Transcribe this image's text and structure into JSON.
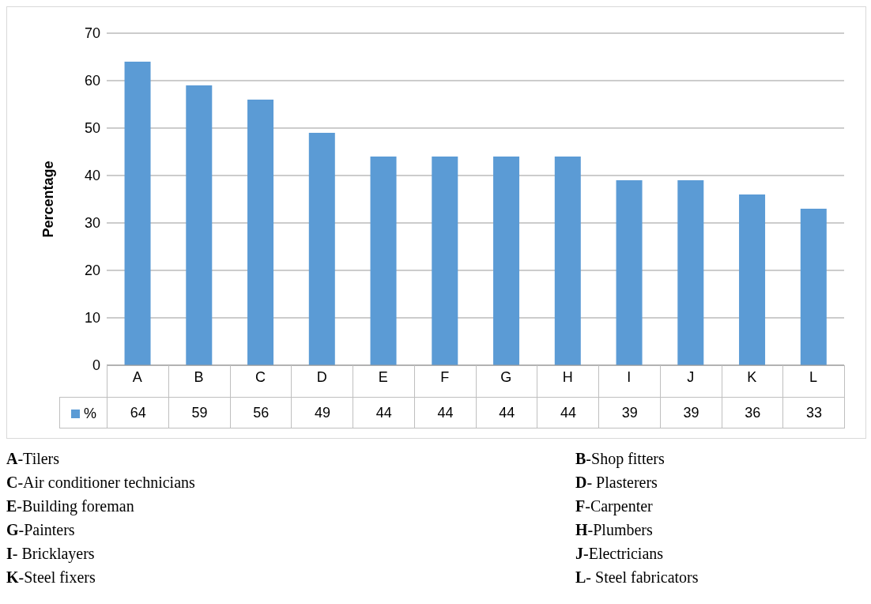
{
  "chart_data": {
    "type": "bar",
    "ylabel": "Percentage",
    "categories": [
      "A",
      "B",
      "C",
      "D",
      "E",
      "F",
      "G",
      "H",
      "I",
      "J",
      "K",
      "L"
    ],
    "series": [
      {
        "name": "%",
        "color": "#5b9bd5",
        "values": [
          64,
          59,
          56,
          49,
          44,
          44,
          44,
          44,
          39,
          39,
          36,
          33
        ]
      }
    ],
    "ylim": [
      0,
      70
    ],
    "yticks": [
      0,
      10,
      20,
      30,
      40,
      50,
      60,
      70
    ],
    "grid": "y",
    "legend": "bottom",
    "data_labels": true,
    "annotations": [
      "A-Tilers",
      "B-Shop fitters",
      "C-Air conditioner technicians",
      "D- Plasterers",
      "E-Building foreman",
      "F-Carpenter",
      "G-Painters",
      "H-Plumbers",
      "I- Bricklayers",
      "J-Electricians",
      "K-Steel fixers",
      "L- Steel fabricators"
    ]
  }
}
